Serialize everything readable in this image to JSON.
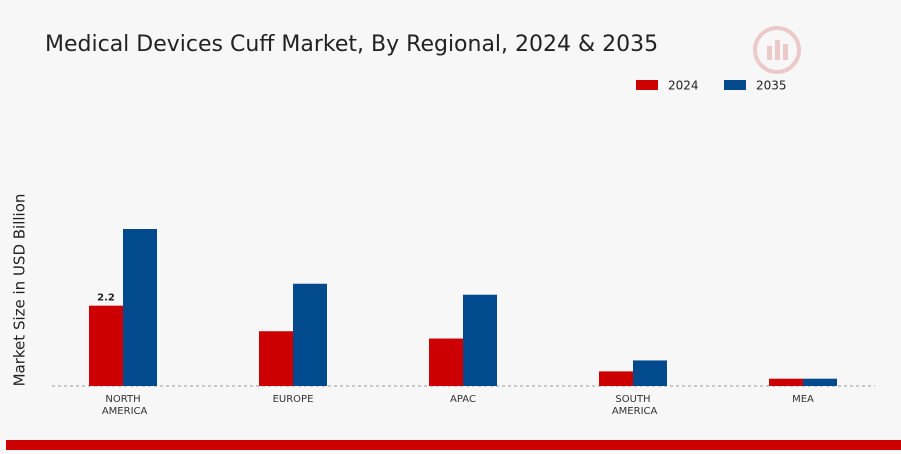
{
  "chart_data": {
    "type": "bar",
    "title": "Medical Devices Cuff Market, By Regional, 2024 & 2035",
    "y_label": "Market Size in USD Billion",
    "categories": [
      "NORTH AMERICA",
      "EUROPE",
      "APAC",
      "SOUTH AMERICA",
      "MEA"
    ],
    "series": [
      {
        "name": "2024",
        "color": "#cc0000",
        "values": [
          2.2,
          1.5,
          1.3,
          0.4,
          0.2
        ],
        "value_labels": [
          "2.2",
          null,
          null,
          null,
          null
        ]
      },
      {
        "name": "2035",
        "color": "#004a8d",
        "values": [
          4.3,
          2.8,
          2.5,
          0.7,
          0.2
        ]
      }
    ],
    "legend": "top-right"
  }
}
